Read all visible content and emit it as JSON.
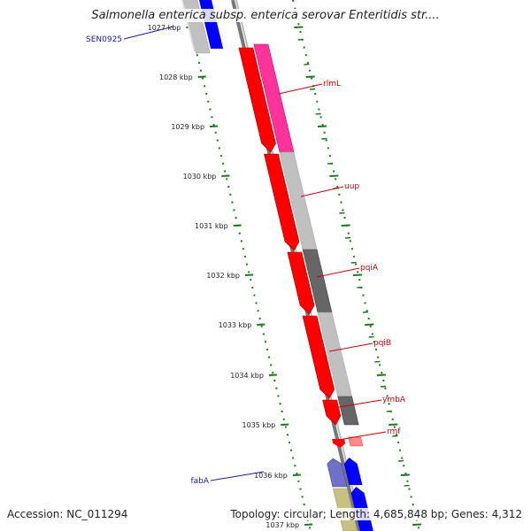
{
  "title": "Salmonella enterica subsp. enterica serovar Enteritidis str....",
  "footer": {
    "accession": "Accession: NC_011294",
    "topology": "Topology: circular; Length: 4,685,848 bp; Genes: 4,312"
  },
  "colors": {
    "cds_forward": "#ff0000",
    "rrna_pink": "#ff3399",
    "gray_light": "#c0c0c0",
    "gray_dark": "#666666",
    "blue_gene": "#0000ff",
    "purple_gene": "#7070c8",
    "olive_gene": "#c8c080",
    "tick_green": "#1a7a1a",
    "label_red": "#cc0000",
    "label_blue": "#1a1aaa"
  },
  "ticks": [
    {
      "label": "1027 kbp"
    },
    {
      "label": "1028 kbp"
    },
    {
      "label": "1029 kbp"
    },
    {
      "label": "1030 kbp"
    },
    {
      "label": "1031 kbp"
    },
    {
      "label": "1032 kbp"
    },
    {
      "label": "1033 kbp"
    },
    {
      "label": "1034 kbp"
    },
    {
      "label": "1035 kbp"
    },
    {
      "label": "1036 kbp"
    },
    {
      "label": "1037 kbp"
    }
  ],
  "genes": [
    {
      "name": "SEN0925"
    },
    {
      "name": "rlmL"
    },
    {
      "name": "uup"
    },
    {
      "name": "pqiA"
    },
    {
      "name": "pqiB"
    },
    {
      "name": "ymbA"
    },
    {
      "name": "rmf"
    },
    {
      "name": "fabA"
    }
  ]
}
